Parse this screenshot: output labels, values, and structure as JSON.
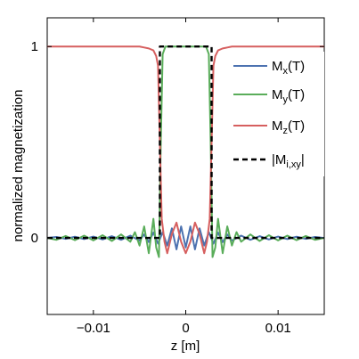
{
  "chart_data": {
    "type": "line",
    "xlabel": "z [m]",
    "ylabel": "normalized magnetization",
    "xlim": [
      -0.015,
      0.015
    ],
    "ylim": [
      -0.4,
      1.15
    ],
    "xticks": [
      -0.01,
      0,
      0.01
    ],
    "xtick_labels": [
      "−0.01",
      "0",
      "0.01"
    ],
    "yticks": [
      0,
      1
    ],
    "ytick_labels": [
      "0",
      "1"
    ],
    "grid": false,
    "legend_position": "upper-right",
    "series": [
      {
        "name": "Mx(T)",
        "legend_main": "M",
        "legend_sub": "x",
        "legend_tail": "(T)",
        "color": "#4c72b0",
        "style": "solid",
        "points": [
          [
            -0.015,
            0
          ],
          [
            -0.014,
            0.005
          ],
          [
            -0.013,
            -0.005
          ],
          [
            -0.012,
            0.006
          ],
          [
            -0.011,
            -0.006
          ],
          [
            -0.01,
            0.007
          ],
          [
            -0.009,
            -0.008
          ],
          [
            -0.008,
            0.009
          ],
          [
            -0.007,
            -0.01
          ],
          [
            -0.006,
            0.012
          ],
          [
            -0.005,
            -0.014
          ],
          [
            -0.0045,
            0.018
          ],
          [
            -0.004,
            -0.022
          ],
          [
            -0.0035,
            0.028
          ],
          [
            -0.003,
            -0.03
          ],
          [
            -0.0025,
            0.03
          ],
          [
            -0.002,
            -0.04
          ],
          [
            -0.0015,
            0.05
          ],
          [
            -0.001,
            -0.06
          ],
          [
            -0.0005,
            0.06
          ],
          [
            0,
            -0.05
          ],
          [
            0.0005,
            0.06
          ],
          [
            0.001,
            -0.06
          ],
          [
            0.0015,
            0.05
          ],
          [
            0.002,
            -0.04
          ],
          [
            0.0025,
            0.03
          ],
          [
            0.003,
            -0.03
          ],
          [
            0.0035,
            0.028
          ],
          [
            0.004,
            -0.022
          ],
          [
            0.0045,
            0.018
          ],
          [
            0.005,
            -0.014
          ],
          [
            0.006,
            0.012
          ],
          [
            0.007,
            -0.01
          ],
          [
            0.008,
            0.009
          ],
          [
            0.009,
            -0.008
          ],
          [
            0.01,
            0.007
          ],
          [
            0.011,
            -0.006
          ],
          [
            0.012,
            0.006
          ],
          [
            0.013,
            -0.005
          ],
          [
            0.014,
            0.005
          ],
          [
            0.015,
            0
          ]
        ]
      },
      {
        "name": "My(T)",
        "legend_main": "M",
        "legend_sub": "y",
        "legend_tail": "(T)",
        "color": "#5aad5a",
        "style": "solid",
        "points": [
          [
            -0.015,
            0
          ],
          [
            -0.014,
            -0.01
          ],
          [
            -0.013,
            0.01
          ],
          [
            -0.012,
            -0.012
          ],
          [
            -0.011,
            0.012
          ],
          [
            -0.01,
            -0.013
          ],
          [
            -0.009,
            0.014
          ],
          [
            -0.008,
            -0.016
          ],
          [
            -0.007,
            0.018
          ],
          [
            -0.006,
            -0.02
          ],
          [
            -0.0055,
            0.03
          ],
          [
            -0.005,
            -0.04
          ],
          [
            -0.0045,
            0.06
          ],
          [
            -0.004,
            -0.08
          ],
          [
            -0.0035,
            0.1
          ],
          [
            -0.0032,
            -0.05
          ],
          [
            -0.0029,
            -0.1
          ],
          [
            -0.0027,
            0.5
          ],
          [
            -0.0025,
            0.96
          ],
          [
            -0.0022,
            1.0
          ],
          [
            0.0022,
            1.0
          ],
          [
            0.0025,
            0.96
          ],
          [
            0.0027,
            0.5
          ],
          [
            0.0029,
            -0.1
          ],
          [
            0.0032,
            -0.05
          ],
          [
            0.0035,
            0.1
          ],
          [
            0.004,
            -0.08
          ],
          [
            0.0045,
            0.06
          ],
          [
            0.005,
            -0.04
          ],
          [
            0.0055,
            0.03
          ],
          [
            0.006,
            -0.02
          ],
          [
            0.007,
            0.018
          ],
          [
            0.008,
            -0.016
          ],
          [
            0.009,
            0.014
          ],
          [
            0.01,
            -0.013
          ],
          [
            0.011,
            0.012
          ],
          [
            0.012,
            -0.012
          ],
          [
            0.013,
            0.01
          ],
          [
            0.014,
            -0.01
          ],
          [
            0.015,
            0
          ]
        ]
      },
      {
        "name": "Mz(T)",
        "legend_main": "M",
        "legend_sub": "z",
        "legend_tail": "(T)",
        "color": "#d65f5f",
        "style": "solid",
        "points": [
          [
            -0.015,
            1.0
          ],
          [
            -0.005,
            1.0
          ],
          [
            -0.0045,
            0.995
          ],
          [
            -0.004,
            0.99
          ],
          [
            -0.0035,
            0.98
          ],
          [
            -0.0032,
            0.95
          ],
          [
            -0.003,
            0.9
          ],
          [
            -0.0028,
            0.5
          ],
          [
            -0.0026,
            0.1
          ],
          [
            -0.0023,
            -0.02
          ],
          [
            -0.002,
            -0.08
          ],
          [
            -0.0015,
            0.02
          ],
          [
            -0.001,
            0.08
          ],
          [
            -0.0005,
            -0.02
          ],
          [
            0,
            -0.08
          ],
          [
            0.0005,
            -0.02
          ],
          [
            0.001,
            0.08
          ],
          [
            0.0015,
            0.02
          ],
          [
            0.002,
            -0.08
          ],
          [
            0.0023,
            -0.02
          ],
          [
            0.0026,
            0.1
          ],
          [
            0.0028,
            0.5
          ],
          [
            0.003,
            0.9
          ],
          [
            0.0032,
            0.95
          ],
          [
            0.0035,
            0.98
          ],
          [
            0.004,
            0.99
          ],
          [
            0.0045,
            0.995
          ],
          [
            0.005,
            1.0
          ],
          [
            0.015,
            1.0
          ]
        ]
      },
      {
        "name": "|Mi,xy|",
        "legend_main": "|M",
        "legend_sub": "i,xy",
        "legend_tail": "|",
        "color": "#000000",
        "style": "dashed",
        "points": [
          [
            -0.015,
            0
          ],
          [
            -0.0028,
            0
          ],
          [
            -0.0028,
            1.0
          ],
          [
            0.0028,
            1.0
          ],
          [
            0.0028,
            0
          ],
          [
            0.015,
            0
          ]
        ]
      }
    ]
  }
}
